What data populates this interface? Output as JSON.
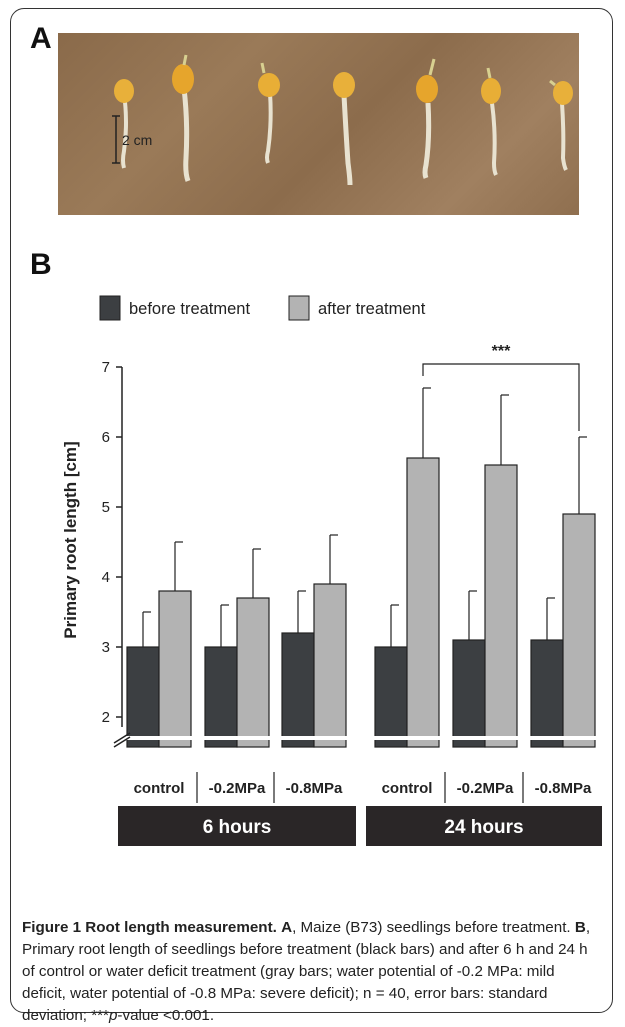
{
  "panel_a": {
    "label": "A",
    "scale_bar_label": "2 cm"
  },
  "panel_b": {
    "label": "B"
  },
  "chart_data": {
    "type": "bar",
    "ylabel": "Primary root length [cm]",
    "y_ticks": [
      2,
      3,
      4,
      5,
      6,
      7
    ],
    "ylim": [
      2,
      7
    ],
    "axis_break": true,
    "legend_placement": "top",
    "series": [
      {
        "name": "before treatment",
        "color": "#3c3f42",
        "values": [
          3.0,
          3.0,
          3.2,
          3.0,
          3.1,
          3.1
        ],
        "errors": [
          0.5,
          0.6,
          0.6,
          0.6,
          0.7,
          0.6
        ]
      },
      {
        "name": "after treatment",
        "color": "#b3b3b3",
        "values": [
          3.8,
          3.7,
          3.9,
          5.7,
          5.6,
          4.9
        ],
        "errors": [
          0.7,
          0.7,
          0.7,
          1.0,
          1.0,
          1.1
        ]
      }
    ],
    "categories": [
      "control",
      "-0.2MPa",
      "-0.8MPa",
      "control",
      "-0.2MPa",
      "-0.8MPa"
    ],
    "groups": [
      {
        "label": "6 hours",
        "categories": [
          0,
          1,
          2
        ]
      },
      {
        "label": "24 hours",
        "categories": [
          3,
          4,
          5
        ]
      }
    ],
    "significance": {
      "label": "***",
      "from_category": 3,
      "to_category": 5
    }
  },
  "caption": {
    "title": "Figure 1 Root length measurement.",
    "a_label": "A",
    "a_text": ", Maize (B73) seedlings before treatment. ",
    "b_label": "B",
    "b_text": ", Primary root length of seedlings before treatment (black bars) and after 6 h and 24 h of control or water deficit treatment (gray bars; water potential of -0.2 MPa: mild deficit, water potential of -0.8 MPa: severe deficit); n = 40, error bars: standard deviation; ***",
    "p_text": "p",
    "end_text": "-value <0.001."
  }
}
